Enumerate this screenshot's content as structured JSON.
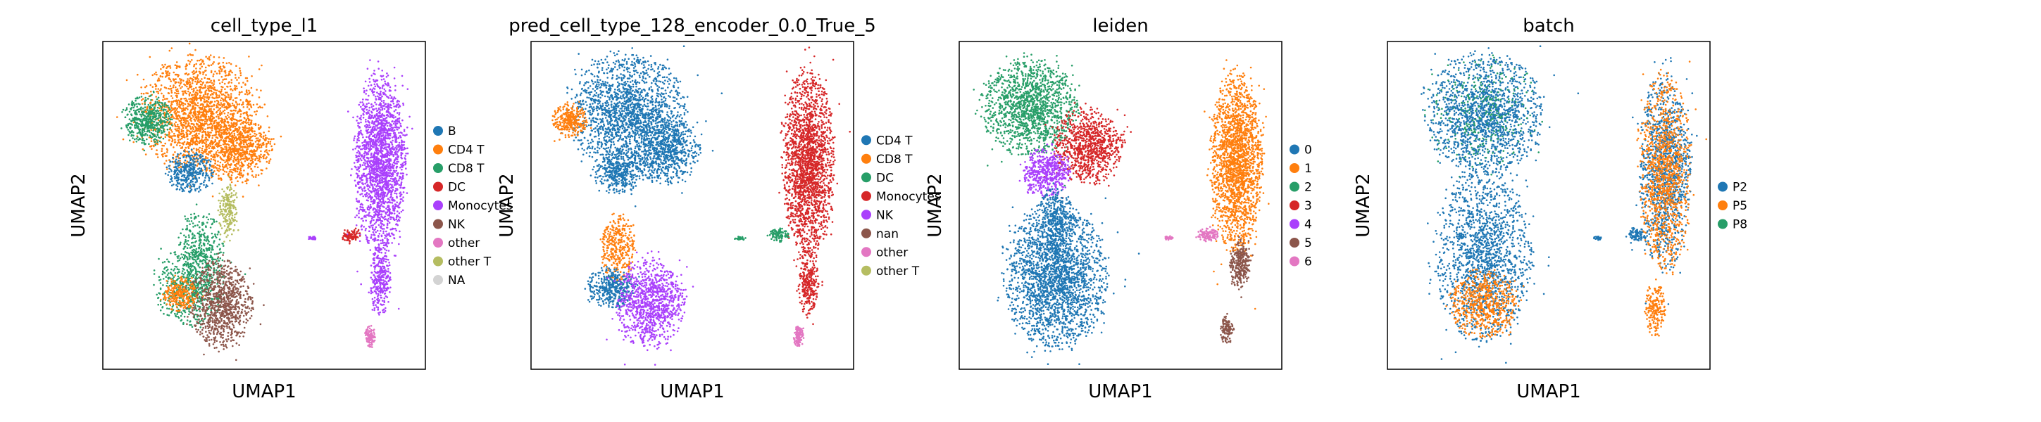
{
  "chart_data": [
    {
      "type": "scatter",
      "title": "cell_type_l1",
      "xlabel": "UMAP1",
      "ylabel": "UMAP2",
      "grid": false,
      "legend_position": "right",
      "legend": [
        {
          "label": "B",
          "color": "#1f77b4"
        },
        {
          "label": "CD4 T",
          "color": "#ff7f0e"
        },
        {
          "label": "CD8 T",
          "color": "#279e68"
        },
        {
          "label": "DC",
          "color": "#d62728"
        },
        {
          "label": "Monocytes",
          "color": "#aa40fc"
        },
        {
          "label": "NK",
          "color": "#8c564b"
        },
        {
          "label": "other",
          "color": "#e377c2"
        },
        {
          "label": "other T",
          "color": "#b5bd61"
        },
        {
          "label": "NA",
          "color": "#d3d3d3"
        }
      ],
      "regions": [
        {
          "category": "CD4 T",
          "cx": 0.3,
          "cy": 0.22,
          "rx": 0.17,
          "ry": 0.17,
          "n": 1800
        },
        {
          "category": "CD4 T",
          "cx": 0.42,
          "cy": 0.33,
          "rx": 0.1,
          "ry": 0.1,
          "n": 700
        },
        {
          "category": "CD8 T",
          "cx": 0.14,
          "cy": 0.24,
          "rx": 0.07,
          "ry": 0.07,
          "n": 500
        },
        {
          "category": "CD8 T",
          "cx": 0.27,
          "cy": 0.75,
          "rx": 0.1,
          "ry": 0.11,
          "n": 600
        },
        {
          "category": "B",
          "cx": 0.27,
          "cy": 0.4,
          "rx": 0.07,
          "ry": 0.06,
          "n": 350
        },
        {
          "category": "CD8 T",
          "cx": 0.3,
          "cy": 0.63,
          "rx": 0.07,
          "ry": 0.1,
          "n": 350
        },
        {
          "category": "other T",
          "cx": 0.39,
          "cy": 0.52,
          "rx": 0.03,
          "ry": 0.08,
          "n": 200
        },
        {
          "category": "CD4 T",
          "cx": 0.24,
          "cy": 0.77,
          "rx": 0.05,
          "ry": 0.05,
          "n": 250
        },
        {
          "category": "NK",
          "cx": 0.37,
          "cy": 0.8,
          "rx": 0.09,
          "ry": 0.13,
          "n": 900
        },
        {
          "category": "Monocytes",
          "cx": 0.86,
          "cy": 0.37,
          "rx": 0.075,
          "ry": 0.26,
          "n": 2000
        },
        {
          "category": "Monocytes",
          "cx": 0.86,
          "cy": 0.73,
          "rx": 0.03,
          "ry": 0.1,
          "n": 300
        },
        {
          "category": "other",
          "cx": 0.83,
          "cy": 0.9,
          "rx": 0.015,
          "ry": 0.03,
          "n": 120
        },
        {
          "category": "DC",
          "cx": 0.77,
          "cy": 0.59,
          "rx": 0.03,
          "ry": 0.02,
          "n": 100
        },
        {
          "category": "Monocytes",
          "cx": 0.65,
          "cy": 0.6,
          "rx": 0.015,
          "ry": 0.005,
          "n": 30
        }
      ]
    },
    {
      "type": "scatter",
      "title": "pred_cell_type_128_encoder_0.0_True_5",
      "xlabel": "UMAP1",
      "ylabel": "UMAP2",
      "grid": false,
      "legend_position": "right",
      "legend": [
        {
          "label": "CD4 T",
          "color": "#1f77b4"
        },
        {
          "label": "CD8 T",
          "color": "#ff7f0e"
        },
        {
          "label": "DC",
          "color": "#279e68"
        },
        {
          "label": "Monocytes",
          "color": "#d62728"
        },
        {
          "label": "NK",
          "color": "#aa40fc"
        },
        {
          "label": "nan",
          "color": "#8c564b"
        },
        {
          "label": "other",
          "color": "#e377c2"
        },
        {
          "label": "other T",
          "color": "#b5bd61"
        }
      ],
      "regions": [
        {
          "category": "CD4 T",
          "cx": 0.3,
          "cy": 0.22,
          "rx": 0.17,
          "ry": 0.17,
          "n": 1800
        },
        {
          "category": "CD4 T",
          "cx": 0.42,
          "cy": 0.33,
          "rx": 0.1,
          "ry": 0.1,
          "n": 700
        },
        {
          "category": "CD8 T",
          "cx": 0.12,
          "cy": 0.24,
          "rx": 0.05,
          "ry": 0.05,
          "n": 300
        },
        {
          "category": "CD4 T",
          "cx": 0.27,
          "cy": 0.4,
          "rx": 0.07,
          "ry": 0.06,
          "n": 350
        },
        {
          "category": "CD8 T",
          "cx": 0.27,
          "cy": 0.63,
          "rx": 0.05,
          "ry": 0.1,
          "n": 350
        },
        {
          "category": "CD4 T",
          "cx": 0.25,
          "cy": 0.75,
          "rx": 0.07,
          "ry": 0.06,
          "n": 400
        },
        {
          "category": "NK",
          "cx": 0.37,
          "cy": 0.8,
          "rx": 0.1,
          "ry": 0.13,
          "n": 1000
        },
        {
          "category": "Monocytes",
          "cx": 0.86,
          "cy": 0.37,
          "rx": 0.075,
          "ry": 0.26,
          "n": 2000
        },
        {
          "category": "Monocytes",
          "cx": 0.86,
          "cy": 0.73,
          "rx": 0.03,
          "ry": 0.1,
          "n": 300
        },
        {
          "category": "other",
          "cx": 0.83,
          "cy": 0.9,
          "rx": 0.015,
          "ry": 0.03,
          "n": 120
        },
        {
          "category": "DC",
          "cx": 0.77,
          "cy": 0.59,
          "rx": 0.03,
          "ry": 0.02,
          "n": 100
        },
        {
          "category": "DC",
          "cx": 0.65,
          "cy": 0.6,
          "rx": 0.015,
          "ry": 0.005,
          "n": 30
        }
      ]
    },
    {
      "type": "scatter",
      "title": "leiden",
      "xlabel": "UMAP1",
      "ylabel": "UMAP2",
      "grid": false,
      "legend_position": "right",
      "legend": [
        {
          "label": "0",
          "color": "#1f77b4"
        },
        {
          "label": "1",
          "color": "#ff7f0e"
        },
        {
          "label": "2",
          "color": "#279e68"
        },
        {
          "label": "3",
          "color": "#d62728"
        },
        {
          "label": "4",
          "color": "#aa40fc"
        },
        {
          "label": "5",
          "color": "#8c564b"
        },
        {
          "label": "6",
          "color": "#e377c2"
        }
      ],
      "regions": [
        {
          "category": "2",
          "cx": 0.22,
          "cy": 0.2,
          "rx": 0.14,
          "ry": 0.14,
          "n": 1400
        },
        {
          "category": "3",
          "cx": 0.4,
          "cy": 0.32,
          "rx": 0.1,
          "ry": 0.11,
          "n": 900
        },
        {
          "category": "4",
          "cx": 0.27,
          "cy": 0.4,
          "rx": 0.07,
          "ry": 0.07,
          "n": 500
        },
        {
          "category": "0",
          "cx": 0.3,
          "cy": 0.72,
          "rx": 0.15,
          "ry": 0.2,
          "n": 2200
        },
        {
          "category": "0",
          "cx": 0.3,
          "cy": 0.55,
          "rx": 0.06,
          "ry": 0.1,
          "n": 400
        },
        {
          "category": "1",
          "cx": 0.86,
          "cy": 0.37,
          "rx": 0.075,
          "ry": 0.26,
          "n": 2000
        },
        {
          "category": "5",
          "cx": 0.87,
          "cy": 0.68,
          "rx": 0.03,
          "ry": 0.07,
          "n": 300
        },
        {
          "category": "5",
          "cx": 0.83,
          "cy": 0.88,
          "rx": 0.02,
          "ry": 0.04,
          "n": 120
        },
        {
          "category": "6",
          "cx": 0.77,
          "cy": 0.59,
          "rx": 0.03,
          "ry": 0.02,
          "n": 120
        },
        {
          "category": "6",
          "cx": 0.65,
          "cy": 0.6,
          "rx": 0.015,
          "ry": 0.005,
          "n": 30
        }
      ]
    },
    {
      "type": "scatter",
      "title": "batch",
      "xlabel": "UMAP1",
      "ylabel": "UMAP2",
      "grid": false,
      "legend_position": "right",
      "legend": [
        {
          "label": "P2",
          "color": "#1f77b4"
        },
        {
          "label": "P5",
          "color": "#ff7f0e"
        },
        {
          "label": "P8",
          "color": "#279e68"
        }
      ],
      "regions": [
        {
          "category": "P2",
          "cx": 0.3,
          "cy": 0.22,
          "rx": 0.17,
          "ry": 0.17,
          "n": 1600
        },
        {
          "category": "P8",
          "cx": 0.3,
          "cy": 0.22,
          "rx": 0.17,
          "ry": 0.17,
          "n": 250
        },
        {
          "category": "P2",
          "cx": 0.3,
          "cy": 0.65,
          "rx": 0.14,
          "ry": 0.25,
          "n": 1600
        },
        {
          "category": "P5",
          "cx": 0.3,
          "cy": 0.8,
          "rx": 0.1,
          "ry": 0.1,
          "n": 600
        },
        {
          "category": "P2",
          "cx": 0.86,
          "cy": 0.4,
          "rx": 0.075,
          "ry": 0.28,
          "n": 1200
        },
        {
          "category": "P5",
          "cx": 0.86,
          "cy": 0.4,
          "rx": 0.075,
          "ry": 0.28,
          "n": 1100
        },
        {
          "category": "P5",
          "cx": 0.83,
          "cy": 0.82,
          "rx": 0.03,
          "ry": 0.08,
          "n": 200
        },
        {
          "category": "P2",
          "cx": 0.77,
          "cy": 0.59,
          "rx": 0.03,
          "ry": 0.02,
          "n": 80
        },
        {
          "category": "P2",
          "cx": 0.65,
          "cy": 0.6,
          "rx": 0.015,
          "ry": 0.005,
          "n": 30
        }
      ]
    }
  ]
}
